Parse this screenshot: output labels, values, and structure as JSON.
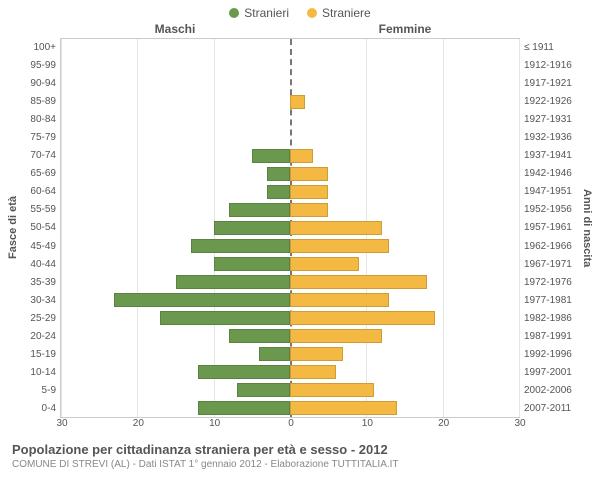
{
  "legend": {
    "male": {
      "label": "Stranieri",
      "color": "#6a994e"
    },
    "female": {
      "label": "Straniere",
      "color": "#f4b942"
    }
  },
  "gender_headers": {
    "male": "Maschi",
    "female": "Femmine"
  },
  "axis_labels": {
    "left": "Fasce di età",
    "right": "Anni di nascita"
  },
  "chart": {
    "type": "population-pyramid",
    "x_max": 30,
    "x_ticks": [
      30,
      20,
      10,
      0,
      10,
      20,
      30
    ],
    "age_bands": [
      "100+",
      "95-99",
      "90-94",
      "85-89",
      "80-84",
      "75-79",
      "70-74",
      "65-69",
      "60-64",
      "55-59",
      "50-54",
      "45-49",
      "40-44",
      "35-39",
      "30-34",
      "25-29",
      "20-24",
      "15-19",
      "10-14",
      "5-9",
      "0-4"
    ],
    "birth_bands": [
      "≤ 1911",
      "1912-1916",
      "1917-1921",
      "1922-1926",
      "1927-1931",
      "1932-1936",
      "1937-1941",
      "1942-1946",
      "1947-1951",
      "1952-1956",
      "1957-1961",
      "1962-1966",
      "1967-1971",
      "1972-1976",
      "1977-1981",
      "1982-1986",
      "1987-1991",
      "1992-1996",
      "1997-2001",
      "2002-2006",
      "2007-2011"
    ],
    "male_values": [
      0,
      0,
      0,
      0,
      0,
      0,
      5,
      3,
      3,
      8,
      10,
      13,
      10,
      15,
      23,
      17,
      8,
      4,
      12,
      7,
      12
    ],
    "female_values": [
      0,
      0,
      0,
      2,
      0,
      0,
      3,
      5,
      5,
      5,
      12,
      13,
      9,
      18,
      13,
      19,
      12,
      7,
      6,
      11,
      14
    ],
    "grid_color": "#e5e5e5",
    "background_color": "#ffffff",
    "border_color": "#cccccc"
  },
  "footer": {
    "title": "Popolazione per cittadinanza straniera per età e sesso - 2012",
    "subtitle": "COMUNE DI STREVI (AL) - Dati ISTAT 1° gennaio 2012 - Elaborazione TUTTITALIA.IT"
  }
}
